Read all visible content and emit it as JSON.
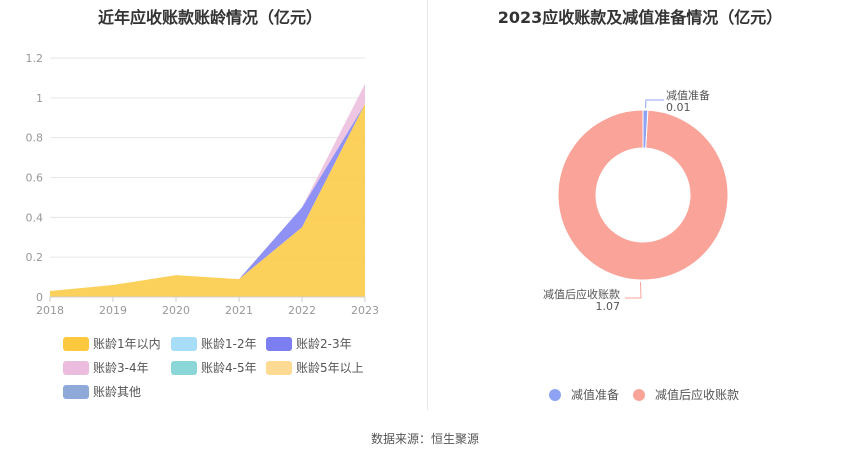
{
  "source_text": "数据来源：恒生聚源",
  "chart_data": [
    {
      "type": "area",
      "title": "近年应收账款账龄情况（亿元）",
      "x": [
        "2018",
        "2019",
        "2020",
        "2021",
        "2022",
        "2023"
      ],
      "ylim": [
        0,
        1.2
      ],
      "yticks": [
        "0",
        "0.2",
        "0.4",
        "0.6",
        "0.8",
        "1",
        "1.2"
      ],
      "grid": true,
      "legend_position": "bottom",
      "series": [
        {
          "name": "账龄1年以内",
          "color": "#FCC93E",
          "values": [
            0.03,
            0.06,
            0.11,
            0.09,
            0.35,
            0.97
          ]
        },
        {
          "name": "账龄1-2年",
          "color": "#A8DDF8",
          "values": [
            0,
            0,
            0,
            0,
            0,
            0
          ]
        },
        {
          "name": "账龄2-3年",
          "color": "#7B7FF2",
          "values": [
            0,
            0,
            0,
            0,
            0.1,
            0
          ]
        },
        {
          "name": "账龄3-4年",
          "color": "#EBBCDD",
          "values": [
            0,
            0,
            0,
            0,
            0,
            0.1
          ]
        },
        {
          "name": "账龄4-5年",
          "color": "#8BD6D6",
          "values": [
            0,
            0,
            0,
            0,
            0,
            0
          ]
        },
        {
          "name": "账龄5年以上",
          "color": "#FFDA93",
          "values": [
            0,
            0,
            0,
            0,
            0,
            0
          ]
        },
        {
          "name": "账龄其他",
          "color": "#8FA9D9",
          "values": [
            0,
            0,
            0,
            0,
            0,
            0
          ]
        }
      ]
    },
    {
      "type": "pie",
      "title": "2023应收账款及减值准备情况（亿元）",
      "legend_position": "bottom",
      "slices": [
        {
          "name": "减值准备",
          "value": 0.01,
          "label": "0.01",
          "color": "#8FA3F5"
        },
        {
          "name": "减值后应收账款",
          "value": 1.07,
          "label": "1.07",
          "color": "#F9A399"
        }
      ]
    }
  ]
}
